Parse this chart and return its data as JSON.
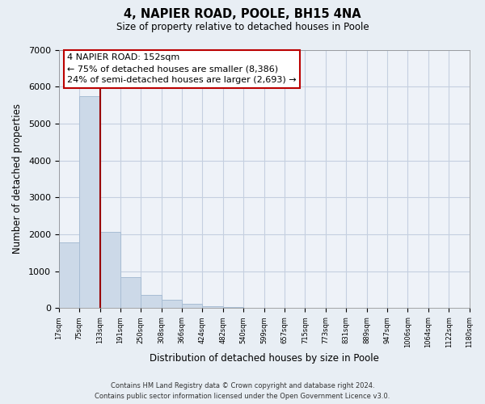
{
  "title": "4, NAPIER ROAD, POOLE, BH15 4NA",
  "subtitle": "Size of property relative to detached houses in Poole",
  "xlabel": "Distribution of detached houses by size in Poole",
  "ylabel": "Number of detached properties",
  "bar_color": "#ccd9e8",
  "bar_edge_color": "#a8bdd4",
  "vline_color": "#990000",
  "vline_x_index": 2,
  "bar_values": [
    1780,
    5750,
    2070,
    840,
    360,
    230,
    110,
    60,
    35,
    8,
    0,
    0,
    0,
    0,
    0,
    0,
    0,
    0,
    0,
    0
  ],
  "categories": [
    "17sqm",
    "75sqm",
    "133sqm",
    "191sqm",
    "250sqm",
    "308sqm",
    "366sqm",
    "424sqm",
    "482sqm",
    "540sqm",
    "599sqm",
    "657sqm",
    "715sqm",
    "773sqm",
    "831sqm",
    "889sqm",
    "947sqm",
    "1006sqm",
    "1064sqm",
    "1122sqm",
    "1180sqm"
  ],
  "ylim": [
    0,
    7000
  ],
  "yticks": [
    0,
    1000,
    2000,
    3000,
    4000,
    5000,
    6000,
    7000
  ],
  "annotation_title": "4 NAPIER ROAD: 152sqm",
  "annotation_line1": "← 75% of detached houses are smaller (8,386)",
  "annotation_line2": "24% of semi-detached houses are larger (2,693) →",
  "footer_line1": "Contains HM Land Registry data © Crown copyright and database right 2024.",
  "footer_line2": "Contains public sector information licensed under the Open Government Licence v3.0.",
  "background_color": "#e8eef4",
  "plot_bg_color": "#eef2f8",
  "grid_color": "#c5cfe0"
}
